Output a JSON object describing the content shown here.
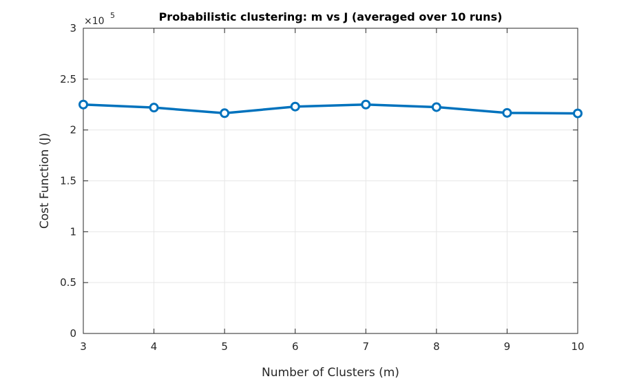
{
  "chart_data": {
    "type": "line",
    "title": "Probabilistic clustering: m vs J (averaged over 10 runs)",
    "xlabel": "Number of Clusters (m)",
    "ylabel": "Cost Function (J)",
    "y_multiplier_label": "×10",
    "y_multiplier_exponent": "5",
    "x": [
      3,
      4,
      5,
      6,
      7,
      8,
      9,
      10
    ],
    "series": [
      {
        "values": [
          225000,
          222000,
          216500,
          223000,
          225000,
          222500,
          216800,
          216300
        ]
      }
    ],
    "xlim": [
      3,
      10
    ],
    "ylim": [
      0,
      300000
    ],
    "x_ticks": [
      3,
      4,
      5,
      6,
      7,
      8,
      9,
      10
    ],
    "x_tick_labels": [
      "3",
      "4",
      "5",
      "6",
      "7",
      "8",
      "9",
      "10"
    ],
    "y_ticks": [
      0,
      50000,
      100000,
      150000,
      200000,
      250000,
      300000
    ],
    "y_tick_labels": [
      "0",
      "0.5",
      "1",
      "1.5",
      "2",
      "2.5",
      "3"
    ],
    "grid": true,
    "marker": "circle",
    "colors": {
      "series": "#0072BD",
      "axes": "#262626",
      "grid": "#e6e6e6"
    }
  }
}
